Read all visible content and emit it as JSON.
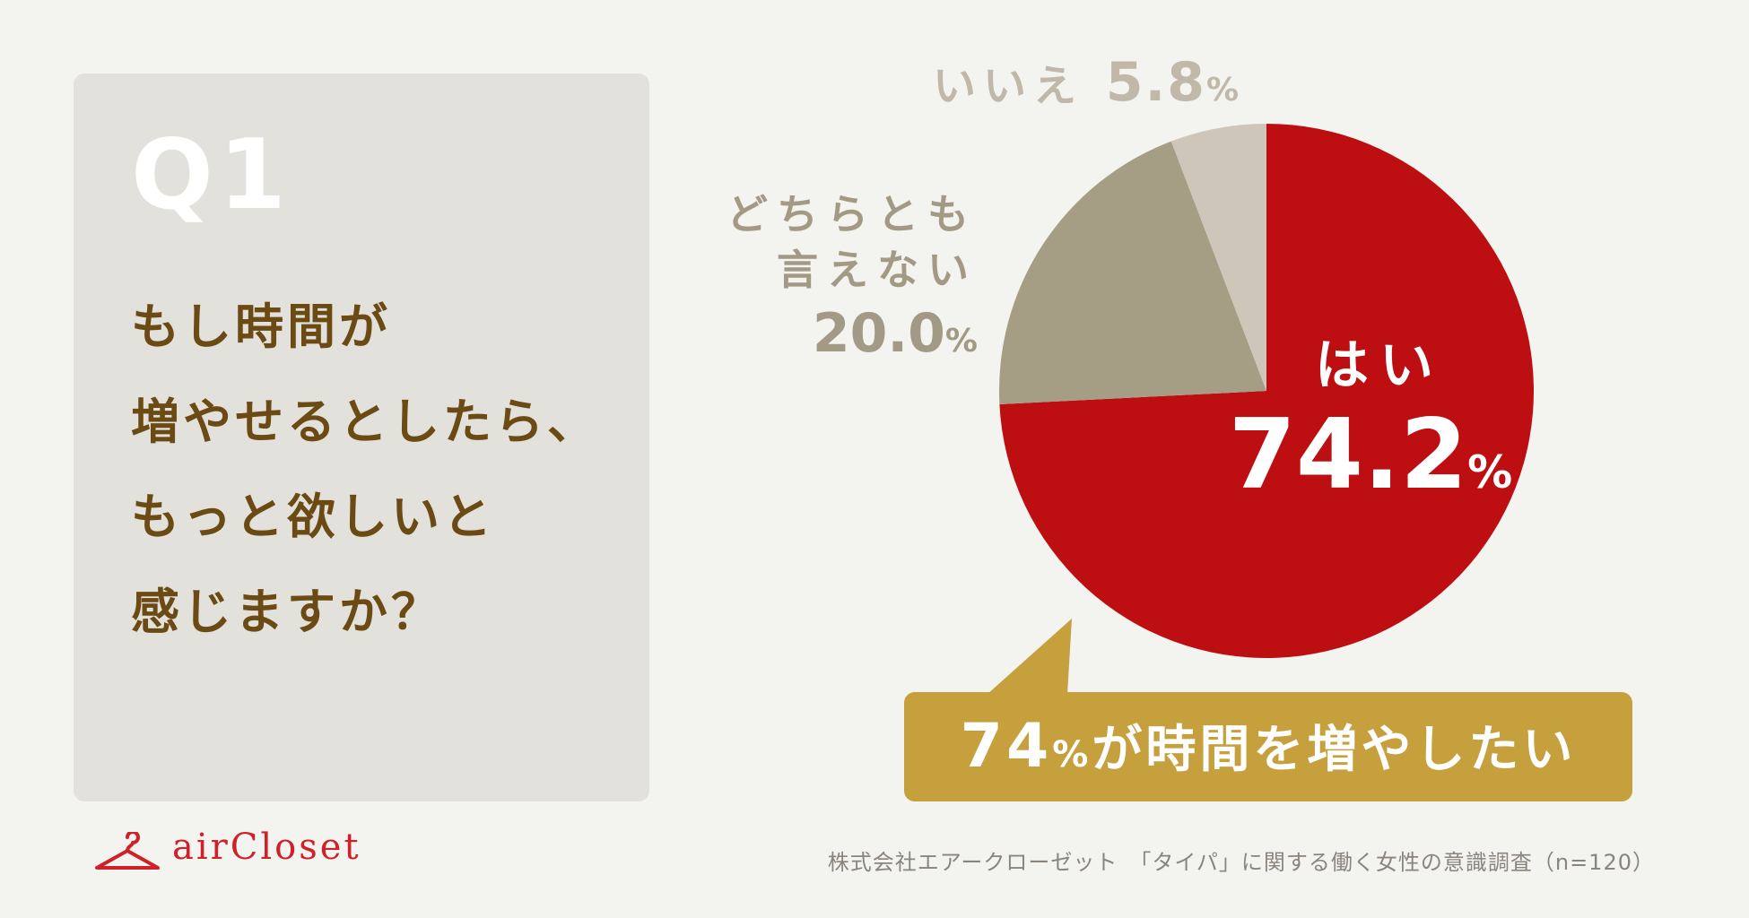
{
  "question": {
    "number": "Q1",
    "lines": [
      "もし時間が",
      "増やせるとしたら、",
      "もっと欲しいと",
      "感じますか？"
    ]
  },
  "chart_data": {
    "type": "pie",
    "slices": [
      {
        "label": "はい",
        "value": 74.2,
        "color": "#bd0f12"
      },
      {
        "label": "どちらとも言えない",
        "value": 20.0,
        "color": "#a69d85"
      },
      {
        "label": "いいえ",
        "value": 5.8,
        "color": "#cec6b8"
      }
    ],
    "labels": {
      "yes": {
        "line1": "はい",
        "value": "74.2",
        "unit": "%"
      },
      "neither": {
        "line1": "どちらとも",
        "line2": "言えない",
        "value": "20.0",
        "unit": "%"
      },
      "no": {
        "line1": "いいえ",
        "value": "5.8",
        "unit": "%"
      }
    }
  },
  "callout": {
    "number": "74",
    "unit": "%",
    "text": "が時間を増やしたい",
    "color": "#c5a03d"
  },
  "brand": {
    "name": "airCloset",
    "color": "#d0202a"
  },
  "source": "株式会社エアークローゼット　「タイパ」に関する働く女性の意識調査（n=120）"
}
